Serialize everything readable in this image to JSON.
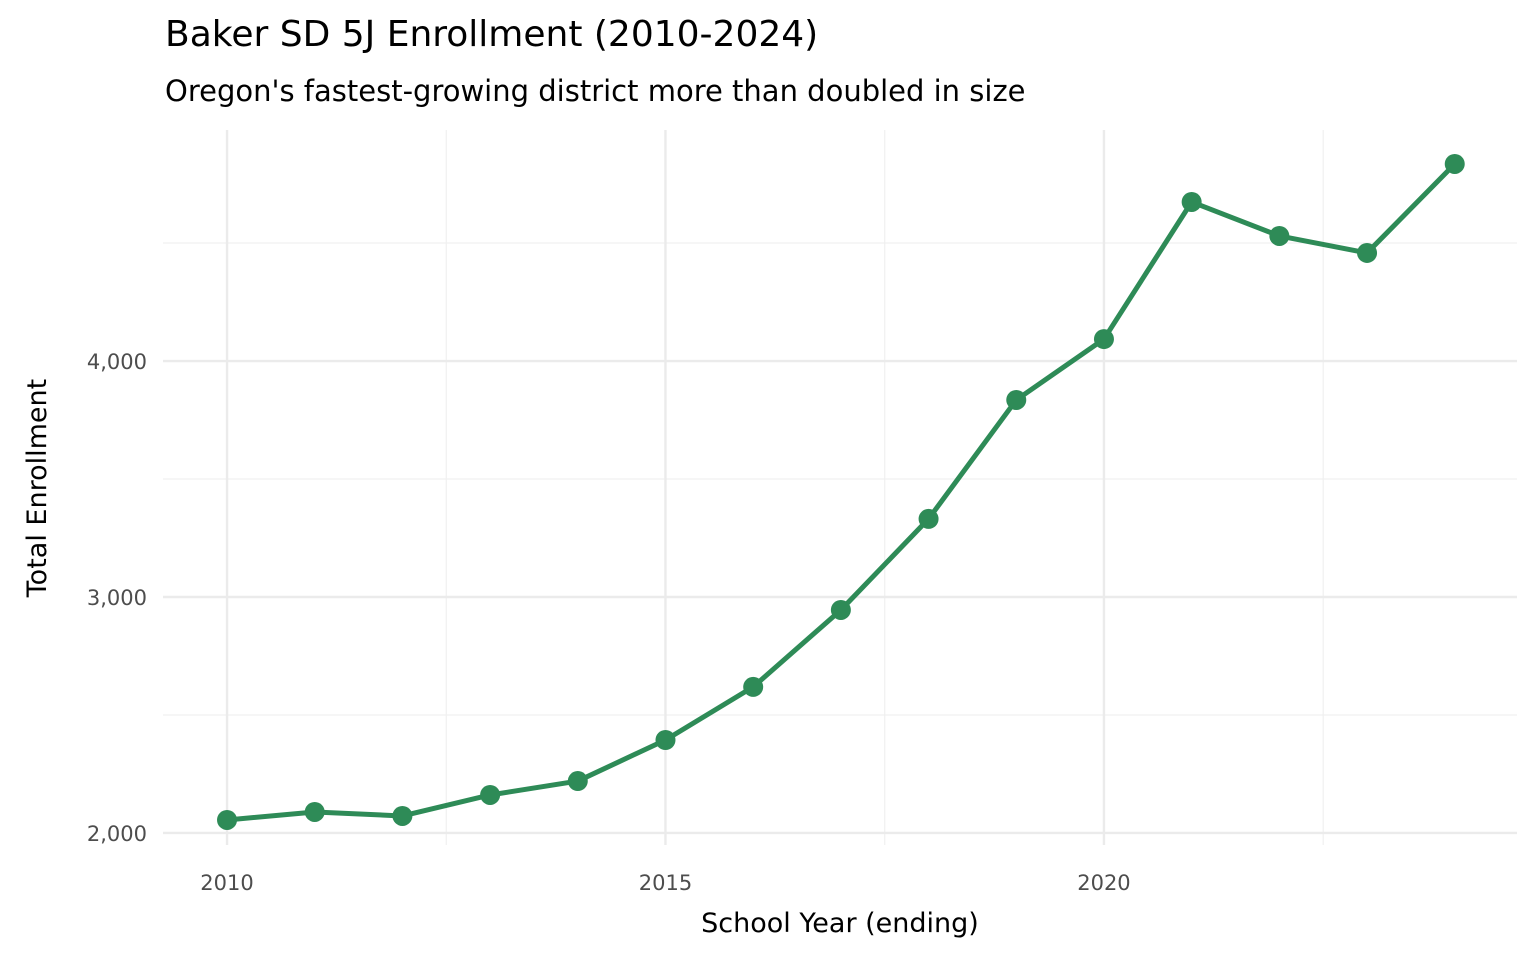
{
  "chart_data": {
    "type": "line",
    "title": "Baker SD 5J Enrollment (2010-2024)",
    "subtitle": "Oregon's fastest-growing district more than doubled in size",
    "xlabel": "School Year (ending)",
    "ylabel": "Total Enrollment",
    "x": [
      2010,
      2011,
      2012,
      2013,
      2014,
      2015,
      2016,
      2017,
      2018,
      2019,
      2020,
      2021,
      2022,
      2023,
      2024
    ],
    "series": [
      {
        "values": [
          2055,
          2089,
          2072,
          2161,
          2220,
          2394,
          2619,
          2945,
          3331,
          3835,
          4093,
          4674,
          4530,
          4458,
          4835
        ],
        "color": "#2e8b57"
      }
    ],
    "xticks": [
      2010,
      2015,
      2020
    ],
    "xtick_labels": [
      "2010",
      "2015",
      "2020"
    ],
    "yticks": [
      2000,
      3000,
      4000
    ],
    "ytick_labels": [
      "2,000",
      "3,000",
      "4,000"
    ],
    "xlim": [
      2009.27,
      2024.71
    ],
    "ylim": [
      1949,
      4979
    ],
    "grid": true,
    "legend": "none"
  }
}
